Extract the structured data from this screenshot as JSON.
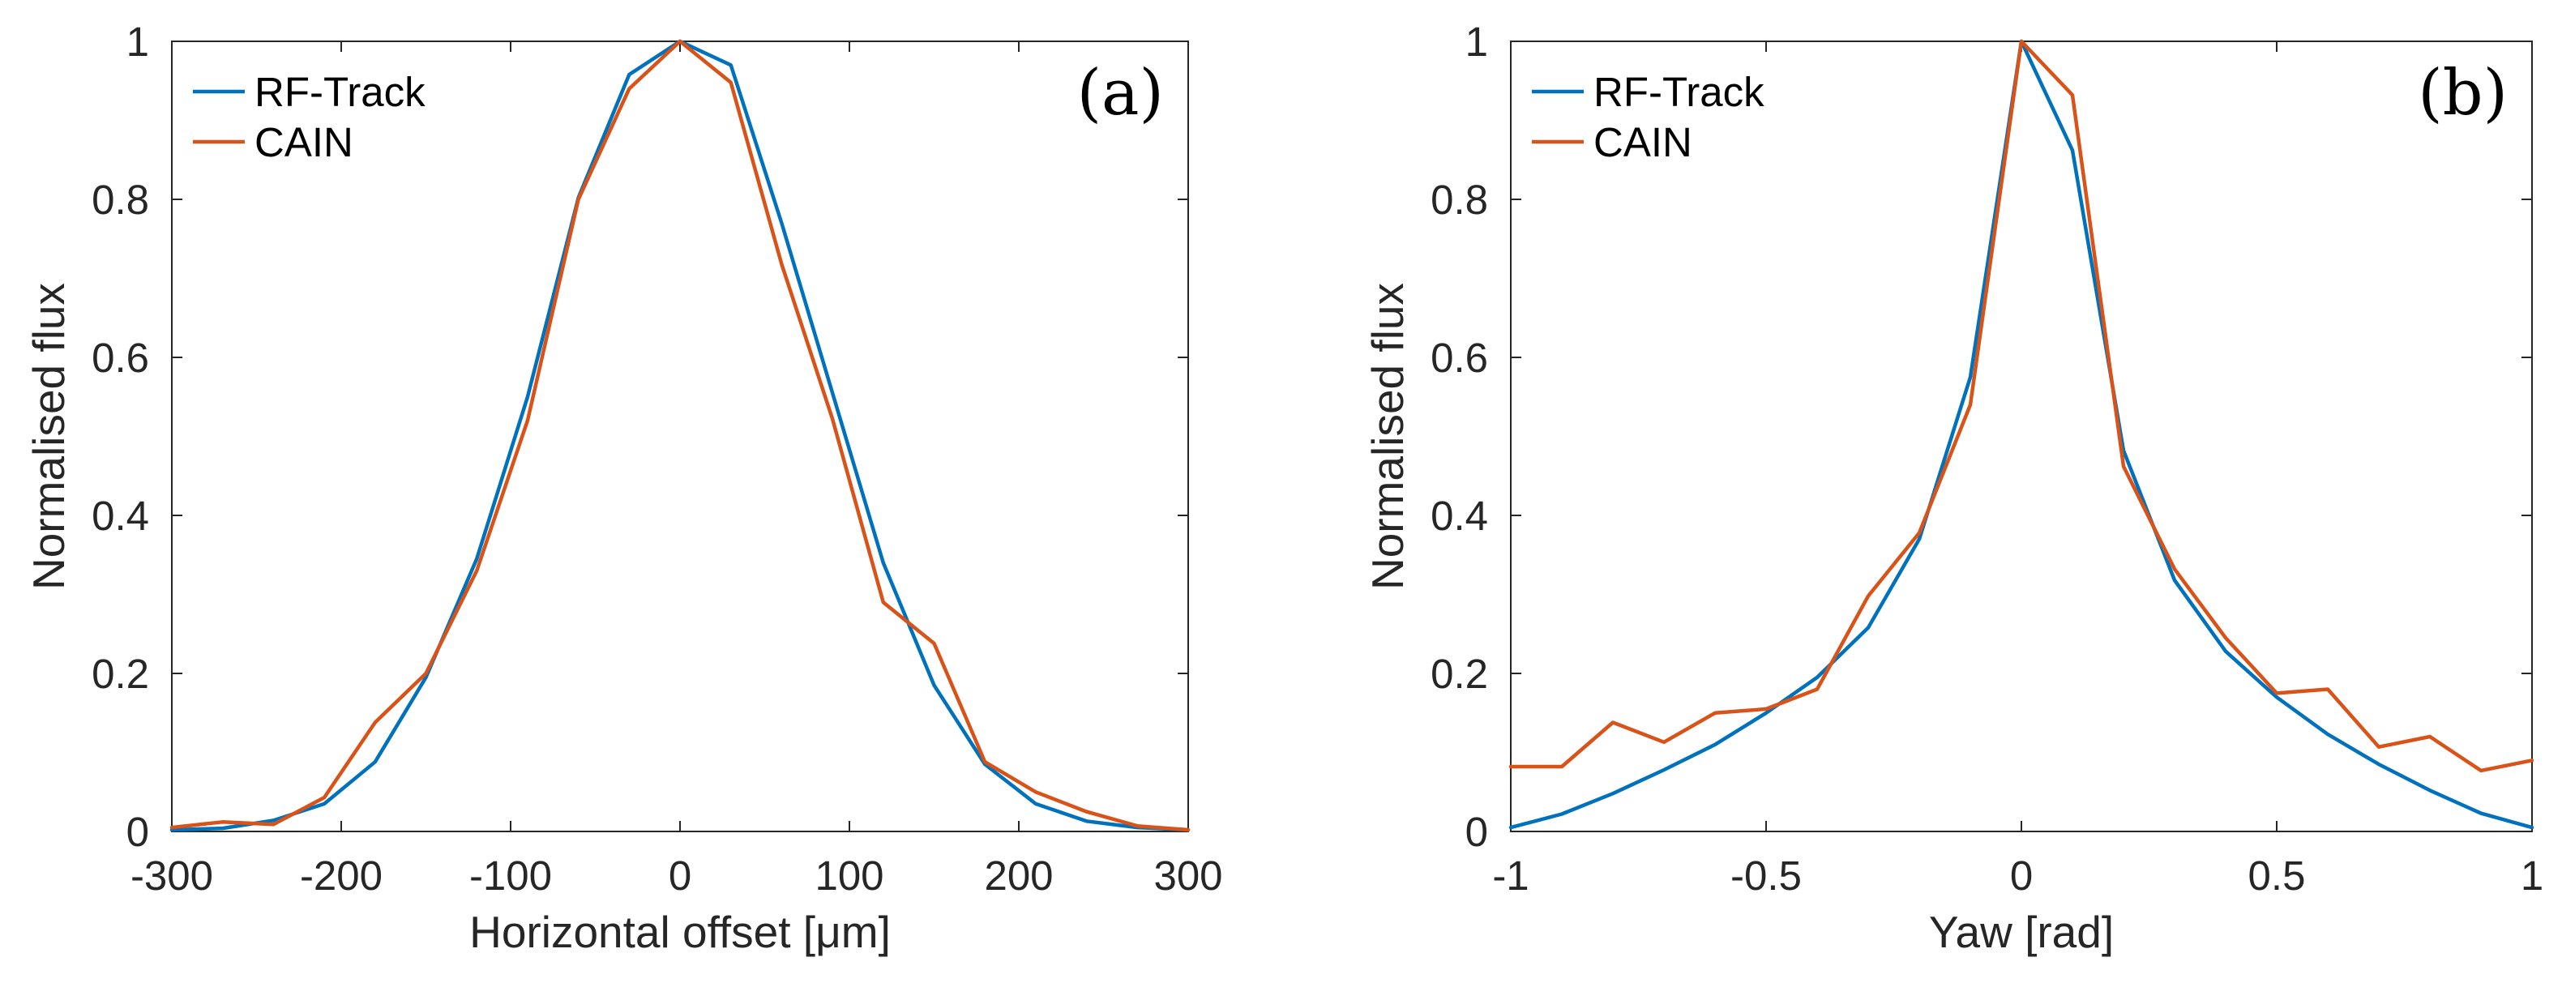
{
  "chart_data": [
    {
      "type": "line",
      "panel_label": "(a)",
      "title": "",
      "xlabel": "Horizontal offset [μm]",
      "ylabel": "Normalised  flux",
      "xlim": [
        -300,
        300
      ],
      "ylim": [
        0,
        1
      ],
      "xticks": [
        -300,
        -200,
        -100,
        0,
        100,
        200,
        300
      ],
      "xtick_labels": [
        "-300",
        "-200",
        "-100",
        "0",
        "100",
        "200",
        "300"
      ],
      "yticks": [
        0,
        0.2,
        0.4,
        0.6,
        0.8,
        1
      ],
      "ytick_labels": [
        "0",
        "0.2",
        "0.4",
        "0.6",
        "0.8",
        "1"
      ],
      "grid": false,
      "legend_location": "top-left",
      "series": [
        {
          "name": "RF-Track",
          "color": "#0072BD",
          "x": [
            -300,
            -270,
            -240,
            -210,
            -180,
            -150,
            -120,
            -90,
            -60,
            -30,
            0,
            30,
            60,
            90,
            120,
            150,
            180,
            210,
            240,
            270,
            300
          ],
          "y": [
            0.002,
            0.004,
            0.014,
            0.035,
            0.088,
            0.195,
            0.345,
            0.55,
            0.802,
            0.958,
            1.0,
            0.97,
            0.77,
            0.555,
            0.34,
            0.185,
            0.085,
            0.035,
            0.013,
            0.005,
            0.002
          ]
        },
        {
          "name": "CAIN",
          "color": "#D95319",
          "x": [
            -300,
            -270,
            -240,
            -210,
            -180,
            -150,
            -120,
            -90,
            -60,
            -30,
            0,
            30,
            60,
            90,
            120,
            150,
            180,
            210,
            240,
            270,
            300
          ],
          "y": [
            0.005,
            0.012,
            0.009,
            0.043,
            0.138,
            0.2,
            0.33,
            0.52,
            0.8,
            0.94,
            1.0,
            0.948,
            0.718,
            0.522,
            0.29,
            0.238,
            0.088,
            0.05,
            0.025,
            0.007,
            0.002
          ]
        }
      ]
    },
    {
      "type": "line",
      "panel_label": "(b)",
      "title": "",
      "xlabel": "Yaw [rad]",
      "ylabel": "Normalised  flux",
      "xlim": [
        -1,
        1
      ],
      "ylim": [
        0,
        1
      ],
      "xticks": [
        -1,
        -0.5,
        0,
        0.5,
        1
      ],
      "xtick_labels": [
        "-1",
        "-0.5",
        "0",
        "0.5",
        "1"
      ],
      "yticks": [
        0,
        0.2,
        0.4,
        0.6,
        0.8,
        1
      ],
      "ytick_labels": [
        "0",
        "0.2",
        "0.4",
        "0.6",
        "0.8",
        "1"
      ],
      "grid": false,
      "legend_location": "top-left",
      "series": [
        {
          "name": "RF-Track",
          "color": "#0072BD",
          "x": [
            -1,
            -0.9,
            -0.8,
            -0.7,
            -0.6,
            -0.5,
            -0.4,
            -0.3,
            -0.2,
            -0.1,
            0,
            0.1,
            0.2,
            0.3,
            0.4,
            0.5,
            0.6,
            0.7,
            0.8,
            0.9,
            1
          ],
          "y": [
            0.005,
            0.022,
            0.048,
            0.078,
            0.11,
            0.15,
            0.195,
            0.258,
            0.37,
            0.575,
            1.0,
            0.862,
            0.482,
            0.318,
            0.228,
            0.17,
            0.123,
            0.085,
            0.052,
            0.023,
            0.005
          ]
        },
        {
          "name": "CAIN",
          "color": "#D95319",
          "x": [
            -1,
            -0.9,
            -0.8,
            -0.7,
            -0.6,
            -0.5,
            -0.4,
            -0.3,
            -0.2,
            -0.1,
            0,
            0.1,
            0.2,
            0.3,
            0.4,
            0.5,
            0.6,
            0.7,
            0.8,
            0.9,
            1
          ],
          "y": [
            0.082,
            0.082,
            0.138,
            0.113,
            0.15,
            0.155,
            0.18,
            0.298,
            0.378,
            0.54,
            1.0,
            0.932,
            0.462,
            0.332,
            0.245,
            0.175,
            0.18,
            0.107,
            0.12,
            0.077,
            0.09
          ]
        }
      ]
    }
  ]
}
